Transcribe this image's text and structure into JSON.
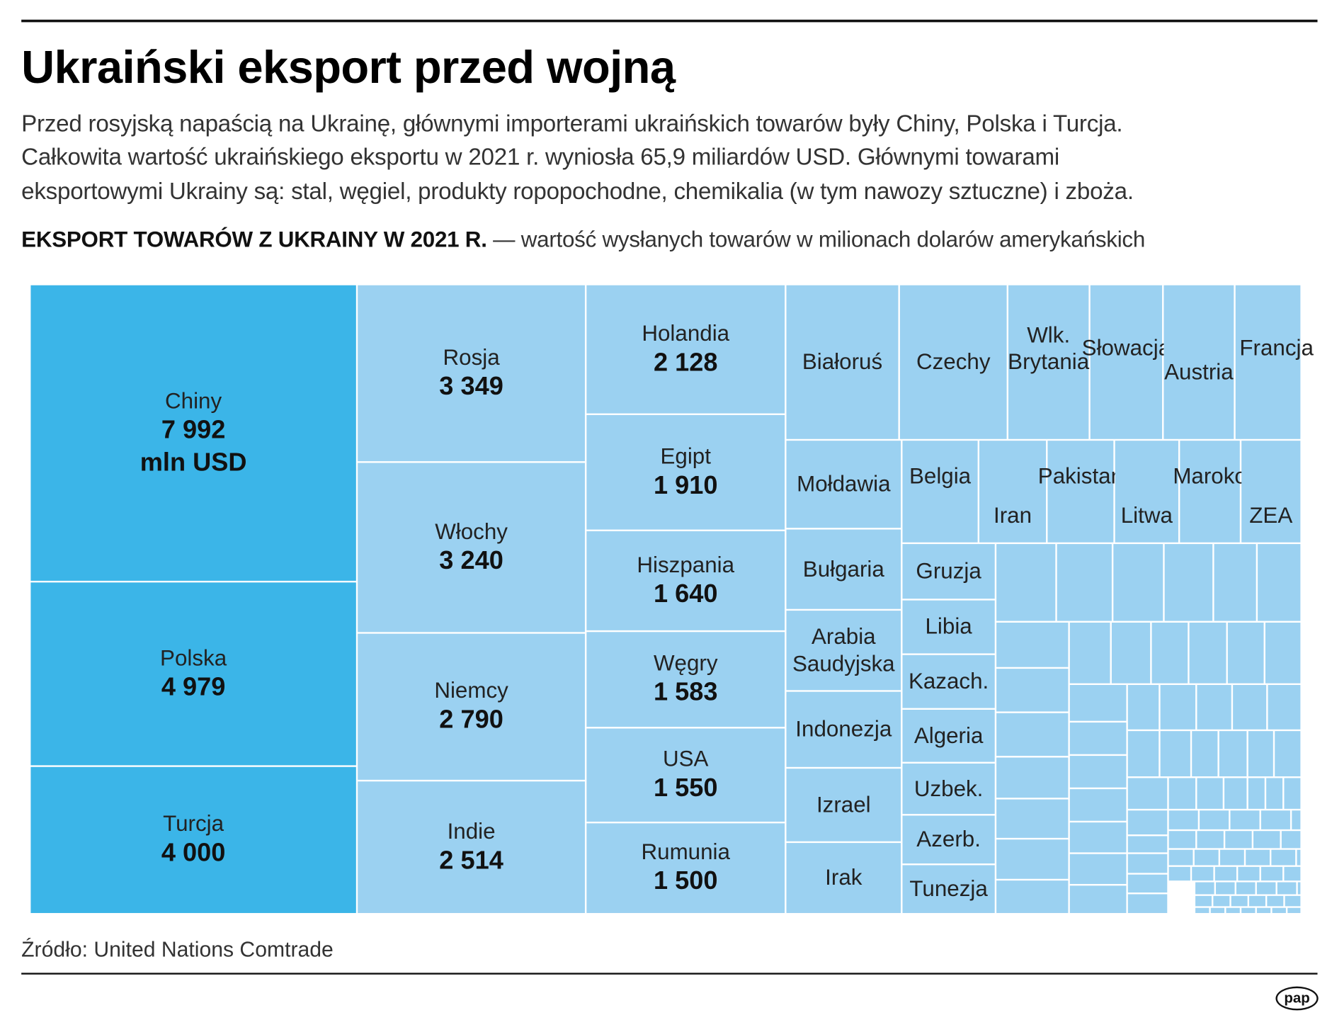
{
  "header": {
    "title": "Ukraiński eksport przed wojną",
    "paragraph": [
      "Przed rosyjską napaścią na Ukrainę, głównymi importerami ukraińskich towarów były Chiny, Polska i Turcja.",
      "Całkowita wartość ukraińskiego eksportu w 2021 r. wyniosła 65,9 miliardów USD. Głównymi towarami",
      "eksportowymi Ukrainy są: stal, węgiel, produkty ropopochodne, chemikalia (w tym nawozy sztuczne) i zboża."
    ],
    "subheading_bold": "EKSPORT TOWARÓW Z UKRAINY W 2021 R.",
    "subheading_rest": " — wartość wysłanych towarów w milionach dolarów amerykańskich"
  },
  "chart_data": {
    "type": "treemap",
    "unit": "mln USD",
    "colors": {
      "top3": "#3bb5e8",
      "others": "#9bd1f1"
    },
    "items": [
      {
        "name": "Chiny",
        "value": "7 992",
        "unit_label": "mln USD"
      },
      {
        "name": "Polska",
        "value": "4 979"
      },
      {
        "name": "Turcja",
        "value": "4 000"
      },
      {
        "name": "Rosja",
        "value": "3 349"
      },
      {
        "name": "Włochy",
        "value": "3 240"
      },
      {
        "name": "Niemcy",
        "value": "2 790"
      },
      {
        "name": "Indie",
        "value": "2 514"
      },
      {
        "name": "Holandia",
        "value": "2 128"
      },
      {
        "name": "Egipt",
        "value": "1 910"
      },
      {
        "name": "Hiszpania",
        "value": "1 640"
      },
      {
        "name": "Węgry",
        "value": "1 583"
      },
      {
        "name": "USA",
        "value": "1 550"
      },
      {
        "name": "Rumunia",
        "value": "1 500"
      },
      {
        "name": "Białoruś"
      },
      {
        "name": "Czechy"
      },
      {
        "name": "Wlk. Brytania"
      },
      {
        "name": "Słowacja"
      },
      {
        "name": "Austria"
      },
      {
        "name": "Francja"
      },
      {
        "name": "Mołdawia"
      },
      {
        "name": "Bułgaria"
      },
      {
        "name": "Arabia Saudyjska"
      },
      {
        "name": "Indonezja"
      },
      {
        "name": "Izrael"
      },
      {
        "name": "Irak"
      },
      {
        "name": "Belgia"
      },
      {
        "name": "Iran"
      },
      {
        "name": "Pakistan"
      },
      {
        "name": "Litwa"
      },
      {
        "name": "Maroko"
      },
      {
        "name": "ZEA"
      },
      {
        "name": "Gruzja"
      },
      {
        "name": "Libia"
      },
      {
        "name": "Kazach."
      },
      {
        "name": "Algeria"
      },
      {
        "name": "Uzbek."
      },
      {
        "name": "Azerb."
      },
      {
        "name": "Tunezja"
      }
    ]
  },
  "footer": {
    "source": "Źródło: United Nations Comtrade",
    "logo": "pap"
  }
}
